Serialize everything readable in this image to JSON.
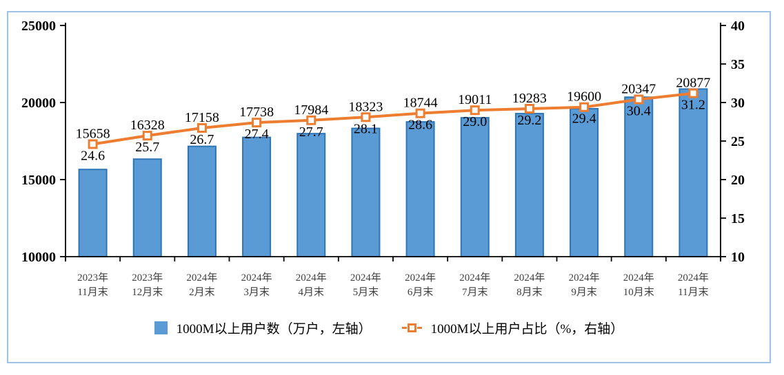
{
  "chart_data": {
    "type": "combo_bar_line",
    "title": "",
    "categories": [
      [
        "2023年",
        "11月末"
      ],
      [
        "2023年",
        "12月末"
      ],
      [
        "2024年",
        "2月末"
      ],
      [
        "2024年",
        "3月末"
      ],
      [
        "2024年",
        "4月末"
      ],
      [
        "2024年",
        "5月末"
      ],
      [
        "2024年",
        "6月末"
      ],
      [
        "2024年",
        "7月末"
      ],
      [
        "2024年",
        "8月末"
      ],
      [
        "2024年",
        "9月末"
      ],
      [
        "2024年",
        "10月末"
      ],
      [
        "2024年",
        "11月末"
      ]
    ],
    "series": [
      {
        "name": "1000M以上用户数（万户，左轴）",
        "type": "bar",
        "axis": "left",
        "decimals": 0,
        "values": [
          15658,
          16328,
          17158,
          17738,
          17984,
          18323,
          18744,
          19011,
          19283,
          19600,
          20347,
          20877
        ]
      },
      {
        "name": "1000M以上用户占比（%，右轴）",
        "type": "line",
        "axis": "right",
        "decimals": 1,
        "values": [
          24.6,
          25.7,
          26.7,
          27.4,
          27.7,
          28.1,
          28.6,
          29.0,
          29.2,
          29.4,
          30.4,
          31.2
        ]
      }
    ],
    "axes": {
      "left": {
        "min": 10000,
        "max": 25000,
        "ticks": [
          25000,
          20000,
          15000,
          10000
        ]
      },
      "right": {
        "min": 10,
        "max": 40,
        "ticks": [
          40,
          35,
          30,
          25,
          20,
          15,
          10
        ]
      }
    },
    "grid": false,
    "legend_position": "bottom",
    "colors": {
      "bar_fill": "#5B9BD5",
      "bar_border": "#2E75B6",
      "line": "#ED7D31",
      "marker_fill": "#FFFFFF",
      "axis": "#000000",
      "x_label": "#3F3F3F",
      "data_label": "#000000",
      "frame_border": "#9DC3E6"
    }
  },
  "legend": {
    "items": [
      {
        "label": "1000M以上用户数（万户，左轴）"
      },
      {
        "label": "1000M以上用户占比（%，右轴）"
      }
    ]
  }
}
